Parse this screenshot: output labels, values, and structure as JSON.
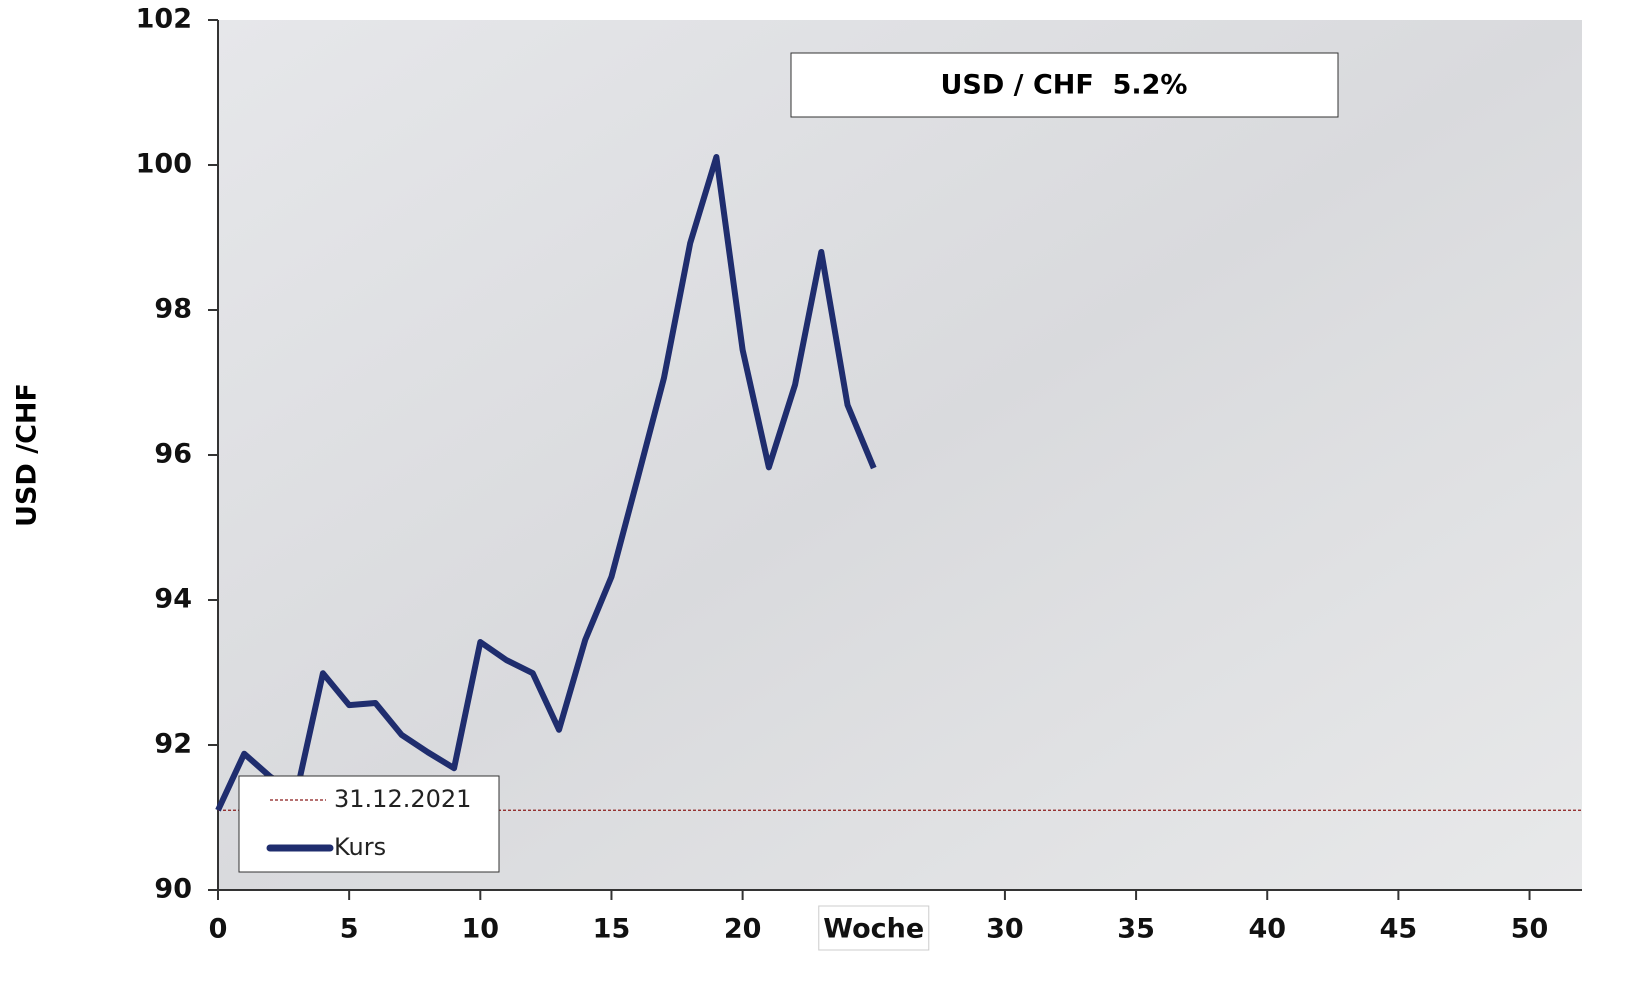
{
  "chart_data": {
    "type": "line",
    "annotation": "USD / CHF  5.2%",
    "ylabel": "USD /CHF",
    "xlabel": "Woche",
    "x": [
      0,
      1,
      2,
      3,
      4,
      5,
      6,
      7,
      8,
      9,
      10,
      11,
      12,
      13,
      14,
      15,
      16,
      17,
      18,
      19,
      20,
      21,
      22,
      23,
      24,
      25
    ],
    "series": [
      {
        "name": "Kurs",
        "color": "#1f2d6e",
        "values": [
          91.1,
          91.88,
          91.56,
          91.35,
          92.99,
          92.55,
          92.58,
          92.14,
          91.9,
          91.68,
          93.42,
          93.17,
          92.99,
          92.21,
          93.45,
          94.32,
          95.68,
          97.06,
          98.92,
          100.11,
          97.45,
          95.83,
          96.97,
          98.8,
          96.69,
          95.82
        ]
      }
    ],
    "reference_line": {
      "name": "31.12.2021",
      "value": 91.1,
      "color": "#8b1a1a"
    },
    "xlim": [
      0,
      52
    ],
    "xticks": [
      0,
      5,
      10,
      15,
      20,
      30,
      35,
      40,
      45,
      50
    ],
    "ylim": [
      90,
      102
    ],
    "yticks": [
      90,
      92,
      94,
      96,
      98,
      100,
      102
    ]
  }
}
